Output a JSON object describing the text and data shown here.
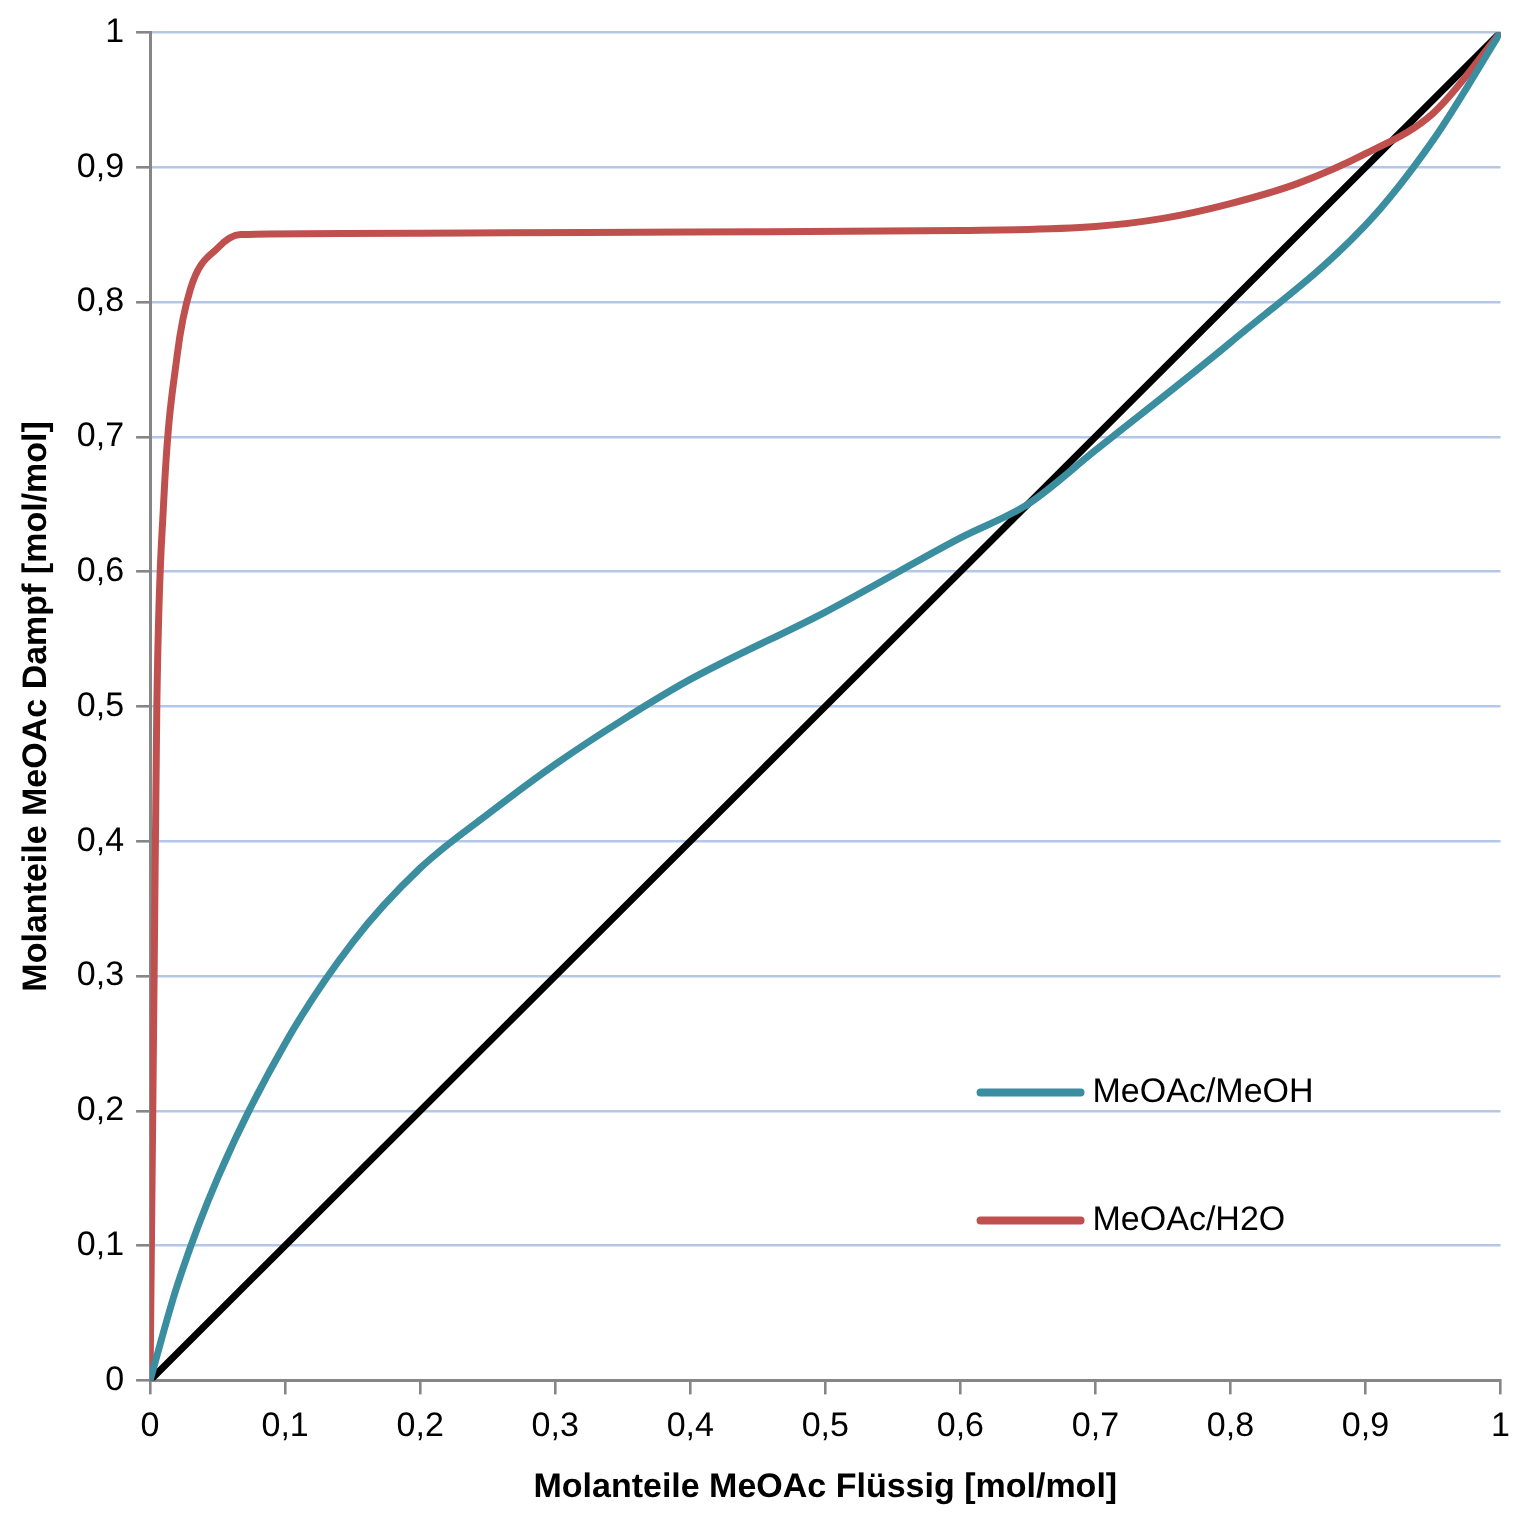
{
  "chart_data": {
    "type": "line",
    "xlabel": "Molanteile MeOAc Flüssig [mol/mol]",
    "ylabel": "Molanteile MeOAc Dampf [mol/mol]",
    "xlim": [
      0,
      1
    ],
    "ylim": [
      0,
      1
    ],
    "xticks": [
      0,
      {
        "value": 0.1,
        "label": "0,1"
      },
      {
        "value": 0.2,
        "label": "0,2"
      },
      {
        "value": 0.3,
        "label": "0,3"
      },
      {
        "value": 0.4,
        "label": "0,4"
      },
      {
        "value": 0.5,
        "label": "0,5"
      },
      {
        "value": 0.6,
        "label": "0,6"
      },
      {
        "value": 0.7,
        "label": "0,7"
      },
      {
        "value": 0.8,
        "label": "0,8"
      },
      {
        "value": 0.9,
        "label": "0,9"
      },
      1
    ],
    "yticks": [
      0,
      {
        "value": 0.1,
        "label": "0,1"
      },
      {
        "value": 0.2,
        "label": "0,2"
      },
      {
        "value": 0.3,
        "label": "0,3"
      },
      {
        "value": 0.4,
        "label": "0,4"
      },
      {
        "value": 0.5,
        "label": "0,5"
      },
      {
        "value": 0.6,
        "label": "0,6"
      },
      {
        "value": 0.7,
        "label": "0,7"
      },
      {
        "value": 0.8,
        "label": "0,8"
      },
      {
        "value": 0.9,
        "label": "0,9"
      },
      1
    ],
    "grid": "y",
    "legend": "bottom right",
    "marker": "none",
    "line_style": "solid",
    "series": [
      {
        "name": "MeOAc/MeOH",
        "color": "#3a8ea0",
        "x": [
          0,
          0.02,
          0.05,
          0.1,
          0.15,
          0.2,
          0.25,
          0.3,
          0.35,
          0.4,
          0.5,
          0.6,
          0.65,
          0.7,
          0.8,
          0.9,
          0.95,
          1
        ],
        "values": [
          0,
          0.07,
          0.15,
          0.25,
          0.325,
          0.38,
          0.42,
          0.457,
          0.49,
          0.52,
          0.57,
          0.625,
          0.65,
          0.69,
          0.77,
          0.857,
          0.92,
          1
        ]
      },
      {
        "name": "MeOAc/H2O",
        "color": "#c0504d",
        "x": [
          0,
          0.003,
          0.005,
          0.01,
          0.02,
          0.03,
          0.05,
          0.067,
          0.2,
          0.4,
          0.6,
          0.7,
          0.75,
          0.8,
          0.85,
          0.9,
          0.95,
          1
        ],
        "values": [
          0,
          0.3,
          0.5,
          0.65,
          0.76,
          0.81,
          0.84,
          0.85,
          0.851,
          0.852,
          0.853,
          0.856,
          0.862,
          0.873,
          0.888,
          0.91,
          0.94,
          1
        ]
      },
      {
        "color": "#000000",
        "x": [
          0,
          1
        ],
        "values": [
          0,
          1
        ]
      }
    ]
  }
}
